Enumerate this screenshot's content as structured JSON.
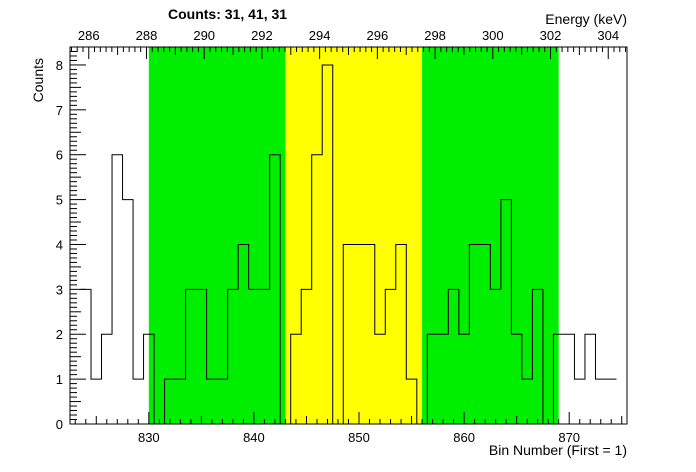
{
  "chart_data": {
    "type": "histogram",
    "title": "Counts:   31,   41,   31",
    "xlabel": "Bin Number (First = 1)",
    "ylabel": "Counts",
    "x2label": "Energy (keV)",
    "xlim": [
      822.5,
      875.5
    ],
    "ylim": [
      0,
      8.4
    ],
    "x2lim": [
      285.35,
      304.65
    ],
    "x_ticks": [
      "830",
      "840",
      "850",
      "860",
      "870"
    ],
    "y_ticks": [
      "0",
      "1",
      "2",
      "3",
      "4",
      "5",
      "6",
      "7",
      "8"
    ],
    "x2_ticks": [
      "286",
      "288",
      "290",
      "292",
      "294",
      "296",
      "298",
      "300",
      "302",
      "304"
    ],
    "regions": [
      {
        "name": "left",
        "from": 830,
        "to": 843,
        "color": "#00ee00"
      },
      {
        "name": "peak",
        "from": 843,
        "to": 856,
        "color": "#ffff00"
      },
      {
        "name": "right",
        "from": 856,
        "to": 869,
        "color": "#00ee00"
      }
    ],
    "bins": [
      {
        "x": 824,
        "y": 3
      },
      {
        "x": 825,
        "y": 1
      },
      {
        "x": 826,
        "y": 2
      },
      {
        "x": 827,
        "y": 6
      },
      {
        "x": 828,
        "y": 5
      },
      {
        "x": 829,
        "y": 1
      },
      {
        "x": 830,
        "y": 2
      },
      {
        "x": 831,
        "y": 0
      },
      {
        "x": 832,
        "y": 1
      },
      {
        "x": 833,
        "y": 1
      },
      {
        "x": 834,
        "y": 3
      },
      {
        "x": 835,
        "y": 3
      },
      {
        "x": 836,
        "y": 1
      },
      {
        "x": 837,
        "y": 1
      },
      {
        "x": 838,
        "y": 3
      },
      {
        "x": 839,
        "y": 4
      },
      {
        "x": 840,
        "y": 3
      },
      {
        "x": 841,
        "y": 3
      },
      {
        "x": 842,
        "y": 6
      },
      {
        "x": 843,
        "y": 0
      },
      {
        "x": 844,
        "y": 2
      },
      {
        "x": 845,
        "y": 3
      },
      {
        "x": 846,
        "y": 6
      },
      {
        "x": 847,
        "y": 8
      },
      {
        "x": 848,
        "y": 0
      },
      {
        "x": 849,
        "y": 4
      },
      {
        "x": 850,
        "y": 4
      },
      {
        "x": 851,
        "y": 4
      },
      {
        "x": 852,
        "y": 2
      },
      {
        "x": 853,
        "y": 3
      },
      {
        "x": 854,
        "y": 4
      },
      {
        "x": 855,
        "y": 1
      },
      {
        "x": 856,
        "y": 0
      },
      {
        "x": 857,
        "y": 2
      },
      {
        "x": 858,
        "y": 2
      },
      {
        "x": 859,
        "y": 3
      },
      {
        "x": 860,
        "y": 2
      },
      {
        "x": 861,
        "y": 4
      },
      {
        "x": 862,
        "y": 4
      },
      {
        "x": 863,
        "y": 3
      },
      {
        "x": 864,
        "y": 5
      },
      {
        "x": 865,
        "y": 2
      },
      {
        "x": 866,
        "y": 1
      },
      {
        "x": 867,
        "y": 3
      },
      {
        "x": 868,
        "y": 0
      },
      {
        "x": 869,
        "y": 2
      },
      {
        "x": 870,
        "y": 2
      },
      {
        "x": 871,
        "y": 1
      },
      {
        "x": 872,
        "y": 2
      },
      {
        "x": 873,
        "y": 1
      },
      {
        "x": 874,
        "y": 1
      }
    ],
    "line_color": "#000000",
    "grid": false
  }
}
